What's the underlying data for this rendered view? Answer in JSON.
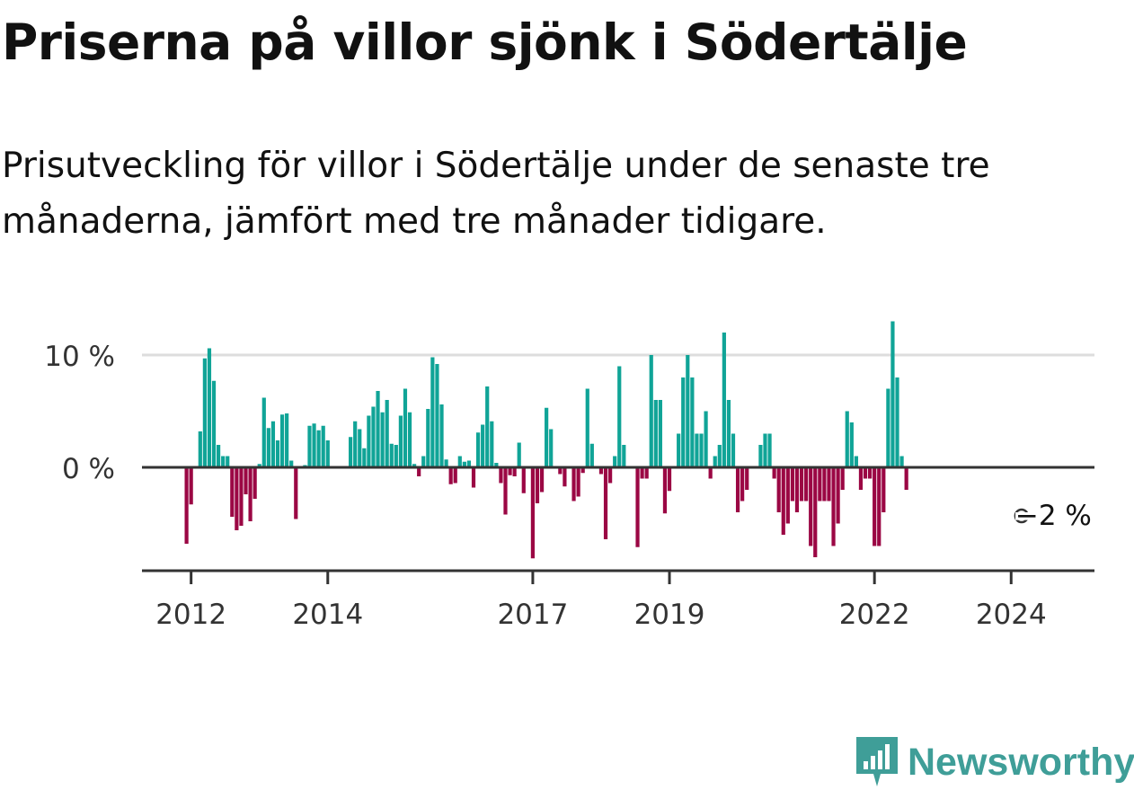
{
  "title": "Priserna på villor sjönk i Södertälje",
  "subtitle": "Prisutveckling för villor i Södertälje under de senaste tre månaderna, jämfört med tre månader tidigare.",
  "brand": {
    "name": "Newsworthy",
    "color": "#3f9e98",
    "icon": "bar-chart-speech-bubble-icon"
  },
  "colors": {
    "positive": "#10a497",
    "negative": "#9b0744",
    "axis": "#333333",
    "grid": "#dddddd"
  },
  "chart_data": {
    "type": "bar",
    "title": "Priserna på villor sjönk i Södertälje",
    "xlabel": "",
    "ylabel": "",
    "ylim": [
      -9,
      12
    ],
    "yticks": [
      0,
      10
    ],
    "ytick_labels": [
      "0 %",
      "10 %"
    ],
    "xticks": [
      {
        "label": "2012",
        "index": 1
      },
      {
        "label": "2014",
        "index": 31
      },
      {
        "label": "2017",
        "index": 76
      },
      {
        "label": "2019",
        "index": 106
      },
      {
        "label": "2022",
        "index": 151
      },
      {
        "label": "2024",
        "index": 181
      }
    ],
    "annotation": {
      "label": "−2 %",
      "index": 191
    },
    "series": [
      {
        "name": "Prisutveckling",
        "values": [
          -6.8,
          -3.3,
          0,
          3.2,
          9.7,
          10.6,
          7.7,
          2,
          1,
          1,
          -4.4,
          -5.6,
          -5.2,
          -2.4,
          -4.8,
          -2.8,
          0.3,
          6.2,
          3.5,
          4.1,
          2.4,
          4.7,
          4.8,
          0.6,
          -4.6,
          0,
          0.2,
          3.7,
          3.9,
          3.3,
          3.7,
          2.4,
          0,
          0,
          0,
          0,
          2.7,
          4.1,
          3.4,
          1.7,
          4.6,
          5.4,
          6.8,
          4.9,
          6,
          2.1,
          2,
          4.6,
          7,
          4.9,
          0.3,
          -0.8,
          1,
          5.2,
          9.8,
          9.2,
          5.6,
          0.7,
          -1.5,
          -1.4,
          1,
          0.5,
          0.6,
          -1.8,
          3.1,
          3.8,
          7.2,
          4.1,
          0.4,
          -1.4,
          -4.2,
          -0.7,
          -0.8,
          2.2,
          -2.3,
          0,
          -8.1,
          -3.2,
          -2.2,
          5.3,
          3.4,
          0,
          -0.6,
          -1.7,
          0,
          -3,
          -2.6,
          -0.5,
          7,
          2.1,
          0,
          -0.6,
          -6.4,
          -1.4,
          1,
          9,
          2,
          0,
          0,
          -7.1,
          -1,
          -1,
          10,
          6,
          6,
          -4.1,
          -2.1,
          0,
          3,
          8,
          10,
          8,
          3,
          3,
          5,
          -1,
          1,
          2,
          12,
          6,
          3,
          -4,
          -3,
          -2,
          0,
          0,
          2,
          3,
          3,
          -1,
          -4,
          -6,
          -5,
          -3,
          -4,
          -3,
          -3,
          -7,
          -8,
          -3,
          -3,
          -3,
          -7,
          -5,
          -2,
          5,
          4,
          1,
          -2,
          -1,
          -1,
          -7,
          -7,
          -4,
          7,
          13,
          8,
          1,
          -2
        ]
      }
    ]
  }
}
